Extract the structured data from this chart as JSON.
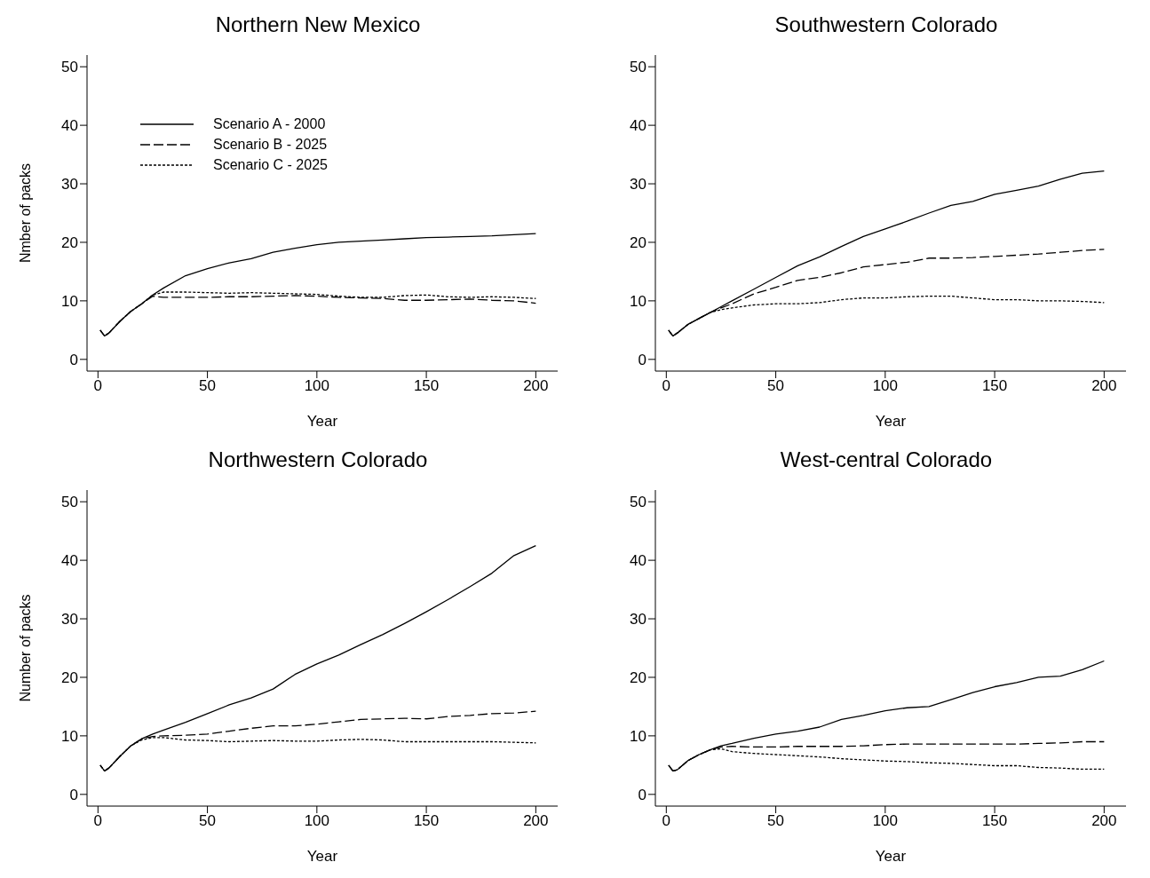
{
  "chart_data": [
    {
      "type": "line",
      "title": "Northern New Mexico",
      "xlabel": "Year",
      "ylabel": "Nmber of packs",
      "legend": "top left",
      "xlim": [
        -5,
        210
      ],
      "xticks": [
        0,
        50,
        100,
        150,
        200
      ],
      "ylim": [
        -2,
        52
      ],
      "yticks": [
        0,
        10,
        20,
        30,
        40,
        50
      ],
      "grid": false,
      "x": [
        1,
        3,
        5,
        10,
        15,
        20,
        25,
        30,
        40,
        50,
        60,
        70,
        80,
        90,
        100,
        110,
        120,
        130,
        140,
        150,
        160,
        170,
        180,
        190,
        200
      ],
      "series": [
        {
          "name": "Scenario A - 2000",
          "color": "#000000",
          "line_style": "solid",
          "values": [
            5,
            4,
            4.5,
            6.5,
            8.2,
            9.5,
            11,
            12.2,
            14.3,
            15.5,
            16.5,
            17.2,
            18.3,
            19,
            19.6,
            20,
            20.2,
            20.4,
            20.6,
            20.8,
            20.9,
            21,
            21.1,
            21.3,
            21.5
          ]
        },
        {
          "name": "Scenario B - 2025",
          "color": "#000000",
          "line_style": "dashed",
          "values": [
            5,
            4,
            4.5,
            6.5,
            8.2,
            9.5,
            10.8,
            10.6,
            10.6,
            10.6,
            10.7,
            10.7,
            10.8,
            10.9,
            10.8,
            10.6,
            10.5,
            10.4,
            10.1,
            10.1,
            10.2,
            10.3,
            10.1,
            10,
            9.6
          ]
        },
        {
          "name": "Scenario C - 2025",
          "color": "#000000",
          "line_style": "dotted",
          "values": [
            5,
            4,
            4.5,
            6.5,
            8.2,
            9.5,
            11,
            11.5,
            11.5,
            11.4,
            11.3,
            11.4,
            11.3,
            11.2,
            11.1,
            10.8,
            10.6,
            10.6,
            10.9,
            11,
            10.7,
            10.6,
            10.7,
            10.6,
            10.4
          ]
        }
      ]
    },
    {
      "type": "line",
      "title": "Southwestern Colorado",
      "xlabel": "Year",
      "legend": false,
      "xlim": [
        -5,
        210
      ],
      "xticks": [
        0,
        50,
        100,
        150,
        200
      ],
      "ylim": [
        -2,
        52
      ],
      "yticks": [
        0,
        10,
        20,
        30,
        40,
        50
      ],
      "grid": false,
      "x": [
        1,
        3,
        5,
        10,
        15,
        20,
        25,
        30,
        40,
        50,
        60,
        70,
        80,
        90,
        100,
        110,
        120,
        130,
        140,
        150,
        160,
        170,
        180,
        190,
        200
      ],
      "series": [
        {
          "color": "#000000",
          "line_style": "solid",
          "values": [
            5,
            4,
            4.5,
            6,
            7,
            8,
            9,
            10,
            12,
            14,
            16,
            17.5,
            19.3,
            21,
            22.3,
            23.6,
            25,
            26.3,
            27,
            28.2,
            28.9,
            29.6,
            30.8,
            31.8,
            32.2
          ]
        },
        {
          "color": "#000000",
          "line_style": "dashed",
          "values": [
            5,
            4,
            4.5,
            6,
            7,
            8,
            8.8,
            9.5,
            11.2,
            12.3,
            13.5,
            14,
            14.8,
            15.8,
            16.2,
            16.6,
            17.3,
            17.3,
            17.4,
            17.6,
            17.8,
            18,
            18.3,
            18.6,
            18.8
          ]
        },
        {
          "color": "#000000",
          "line_style": "dotted",
          "values": [
            5,
            4,
            4.5,
            6,
            7,
            8,
            8.5,
            8.8,
            9.3,
            9.5,
            9.5,
            9.7,
            10.2,
            10.5,
            10.5,
            10.7,
            10.8,
            10.8,
            10.5,
            10.2,
            10.2,
            10,
            10,
            9.9,
            9.7
          ]
        }
      ]
    },
    {
      "type": "line",
      "title": "Northwestern Colorado",
      "xlabel": "Year",
      "ylabel": "Number of packs",
      "legend": false,
      "xlim": [
        -5,
        210
      ],
      "xticks": [
        0,
        50,
        100,
        150,
        200
      ],
      "ylim": [
        -2,
        52
      ],
      "yticks": [
        0,
        10,
        20,
        30,
        40,
        50
      ],
      "grid": false,
      "x": [
        1,
        3,
        5,
        10,
        15,
        20,
        25,
        30,
        40,
        50,
        60,
        70,
        80,
        90,
        100,
        110,
        120,
        130,
        140,
        150,
        160,
        170,
        180,
        190,
        200
      ],
      "series": [
        {
          "color": "#000000",
          "line_style": "solid",
          "values": [
            5,
            4,
            4.5,
            6.5,
            8.3,
            9.5,
            10.3,
            11,
            12.3,
            13.8,
            15.3,
            16.5,
            18,
            20.5,
            22.3,
            23.8,
            25.6,
            27.3,
            29.2,
            31.2,
            33.3,
            35.5,
            37.8,
            40.8,
            42.5
          ]
        },
        {
          "color": "#000000",
          "line_style": "dashed",
          "values": [
            5,
            4,
            4.5,
            6.5,
            8.3,
            9.5,
            9.9,
            10,
            10.1,
            10.3,
            10.8,
            11.3,
            11.7,
            11.7,
            12,
            12.4,
            12.8,
            12.9,
            13,
            12.9,
            13.3,
            13.5,
            13.8,
            13.9,
            14.2
          ]
        },
        {
          "color": "#000000",
          "line_style": "dotted",
          "values": [
            5,
            4,
            4.5,
            6.5,
            8.3,
            9.3,
            9.7,
            9.7,
            9.3,
            9.2,
            9,
            9.1,
            9.2,
            9.1,
            9.1,
            9.3,
            9.4,
            9.3,
            9,
            9,
            9,
            9,
            9,
            8.9,
            8.8
          ]
        }
      ]
    },
    {
      "type": "line",
      "title": "West-central Colorado",
      "xlabel": "Year",
      "legend": false,
      "xlim": [
        -5,
        210
      ],
      "xticks": [
        0,
        50,
        100,
        150,
        200
      ],
      "ylim": [
        -2,
        52
      ],
      "yticks": [
        0,
        10,
        20,
        30,
        40,
        50
      ],
      "grid": false,
      "x": [
        1,
        3,
        5,
        10,
        15,
        20,
        25,
        30,
        40,
        50,
        60,
        70,
        80,
        90,
        100,
        110,
        120,
        130,
        140,
        150,
        160,
        170,
        180,
        190,
        200
      ],
      "series": [
        {
          "color": "#000000",
          "line_style": "solid",
          "values": [
            5,
            4,
            4.2,
            5.8,
            6.8,
            7.6,
            8.3,
            8.7,
            9.6,
            10.3,
            10.8,
            11.5,
            12.8,
            13.5,
            14.3,
            14.8,
            15,
            16.2,
            17.4,
            18.4,
            19.1,
            20,
            20.2,
            21.3,
            22.8
          ]
        },
        {
          "color": "#000000",
          "line_style": "dashed",
          "values": [
            5,
            4,
            4.2,
            5.8,
            6.8,
            7.6,
            8.1,
            8.2,
            8.1,
            8.1,
            8.2,
            8.2,
            8.2,
            8.3,
            8.5,
            8.6,
            8.6,
            8.6,
            8.6,
            8.6,
            8.6,
            8.7,
            8.8,
            9,
            9
          ]
        },
        {
          "color": "#000000",
          "line_style": "dotted",
          "values": [
            5,
            4,
            4.2,
            5.8,
            6.8,
            7.6,
            7.8,
            7.3,
            7,
            6.8,
            6.6,
            6.4,
            6.1,
            5.9,
            5.7,
            5.6,
            5.4,
            5.3,
            5.1,
            4.9,
            4.9,
            4.6,
            4.5,
            4.3,
            4.3
          ]
        }
      ]
    }
  ]
}
